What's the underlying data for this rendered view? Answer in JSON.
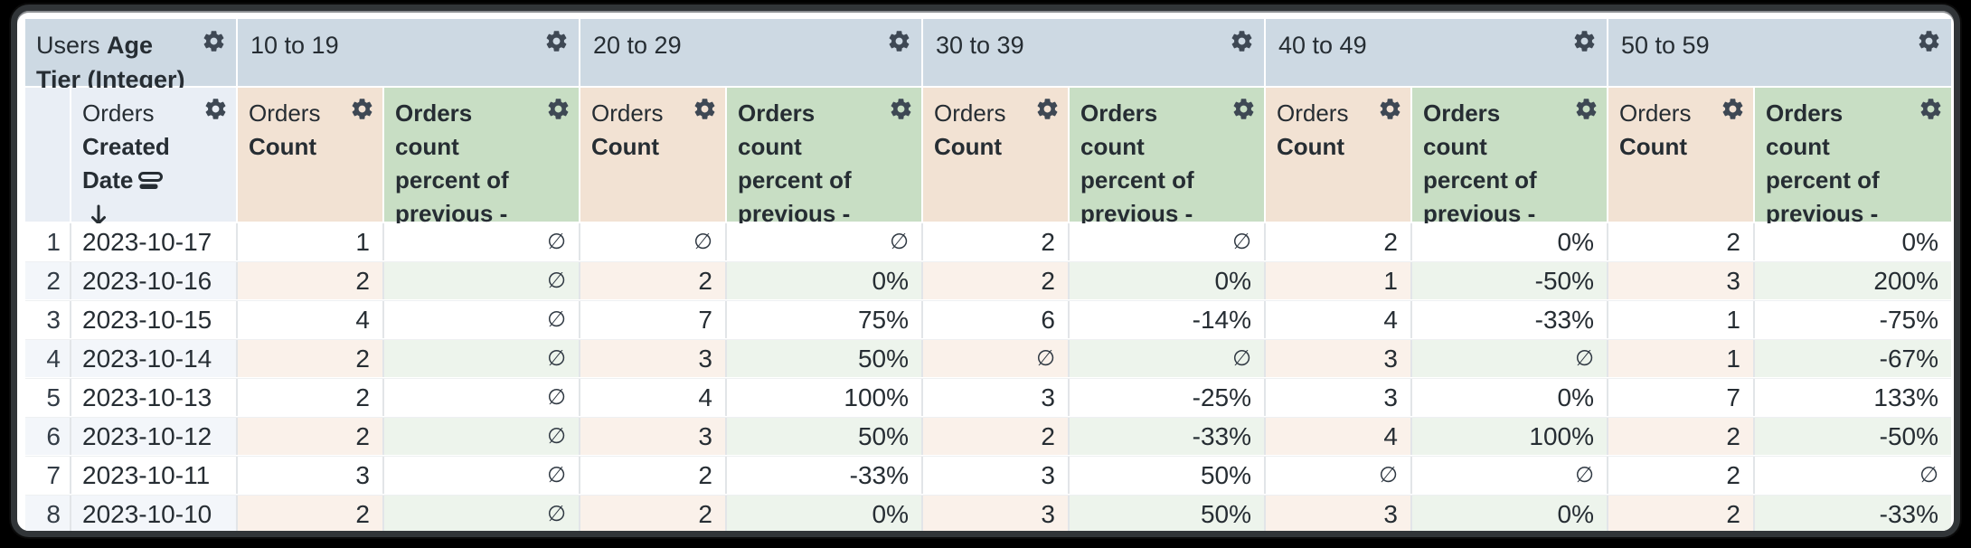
{
  "table": {
    "corner": {
      "view": "Users",
      "field": "Age Tier (Integer)"
    },
    "row_field": {
      "view": "Orders",
      "field_line1": "Created",
      "field_line2": "Date"
    },
    "pivots": [
      {
        "label": "10 to 19"
      },
      {
        "label": "20 to 29"
      },
      {
        "label": "30 to 39"
      },
      {
        "label": "40 to 49"
      },
      {
        "label": "50 to 59"
      }
    ],
    "measure_count": {
      "view": "Orders",
      "field": "Count"
    },
    "measure_percent": {
      "label": "Orders count percent of previous - across rows"
    },
    "null_symbol": "∅",
    "rows": [
      {
        "index": "1",
        "date": "2023-10-17",
        "cells": [
          [
            "1",
            "∅"
          ],
          [
            "∅",
            "∅"
          ],
          [
            "2",
            "∅"
          ],
          [
            "2",
            "0%"
          ],
          [
            "2",
            "0%"
          ]
        ]
      },
      {
        "index": "2",
        "date": "2023-10-16",
        "cells": [
          [
            "2",
            "∅"
          ],
          [
            "2",
            "0%"
          ],
          [
            "2",
            "0%"
          ],
          [
            "1",
            "-50%"
          ],
          [
            "3",
            "200%"
          ]
        ]
      },
      {
        "index": "3",
        "date": "2023-10-15",
        "cells": [
          [
            "4",
            "∅"
          ],
          [
            "7",
            "75%"
          ],
          [
            "6",
            "-14%"
          ],
          [
            "4",
            "-33%"
          ],
          [
            "1",
            "-75%"
          ]
        ]
      },
      {
        "index": "4",
        "date": "2023-10-14",
        "cells": [
          [
            "2",
            "∅"
          ],
          [
            "3",
            "50%"
          ],
          [
            "∅",
            "∅"
          ],
          [
            "3",
            "∅"
          ],
          [
            "1",
            "-67%"
          ]
        ]
      },
      {
        "index": "5",
        "date": "2023-10-13",
        "cells": [
          [
            "2",
            "∅"
          ],
          [
            "4",
            "100%"
          ],
          [
            "3",
            "-25%"
          ],
          [
            "3",
            "0%"
          ],
          [
            "7",
            "133%"
          ]
        ]
      },
      {
        "index": "6",
        "date": "2023-10-12",
        "cells": [
          [
            "2",
            "∅"
          ],
          [
            "3",
            "50%"
          ],
          [
            "2",
            "-33%"
          ],
          [
            "4",
            "100%"
          ],
          [
            "2",
            "-50%"
          ]
        ]
      },
      {
        "index": "7",
        "date": "2023-10-11",
        "cells": [
          [
            "3",
            "∅"
          ],
          [
            "2",
            "-33%"
          ],
          [
            "3",
            "50%"
          ],
          [
            "∅",
            "∅"
          ],
          [
            "2",
            "∅"
          ]
        ]
      },
      {
        "index": "8",
        "date": "2023-10-10",
        "cells": [
          [
            "2",
            "∅"
          ],
          [
            "2",
            "0%"
          ],
          [
            "3",
            "50%"
          ],
          [
            "3",
            "0%"
          ],
          [
            "2",
            "-33%"
          ]
        ]
      }
    ],
    "icons": {
      "gear": "gear-icon",
      "sort_desc": "sort-desc-arrow-icon",
      "field_group": "field-group-icon",
      "pivot_chevron": "chevron-right-icon"
    }
  },
  "colors": {
    "pivot_header_bg": "#cdd9e3",
    "dimension_header_bg": "#e9eef5",
    "measure_header_bg": "#f2e2d3",
    "percent_header_bg": "#c8dec4",
    "row_tint_dimension": "#f3f6fa",
    "row_tint_measure": "#faf1ea",
    "row_tint_percent": "#edf4ec",
    "grid_line": "#e2e5e8",
    "text": "#262d33",
    "icon": "#3e4854",
    "frame": "#313538"
  }
}
